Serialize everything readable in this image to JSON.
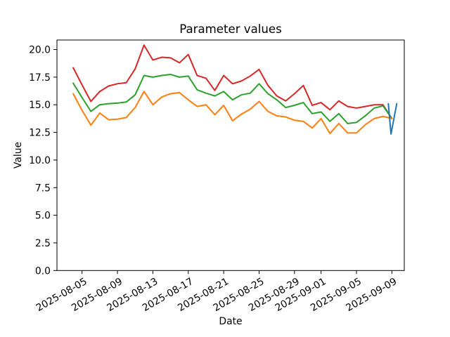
{
  "figure": {
    "background": "#ffffff"
  },
  "chart_data": {
    "type": "line",
    "title": "Parameter values",
    "xlabel": "Date",
    "ylabel": "Value",
    "grid": false,
    "legend": "none",
    "x_start_date": "2025-08-04",
    "x_interval_days": 1,
    "x_end_date": "2025-09-09",
    "ylim": [
      0,
      20.86
    ],
    "y_ticks": {
      "values": [
        0,
        2.5,
        5,
        7.5,
        10,
        12.5,
        15,
        17.5,
        20
      ],
      "labels": [
        "0.0",
        "2.5",
        "5.0",
        "7.5",
        "10.0",
        "12.5",
        "15.0",
        "17.5",
        "20.0"
      ]
    },
    "x_tick_labels": [
      "2025-08-05",
      "2025-08-09",
      "2025-08-13",
      "2025-08-17",
      "2025-08-21",
      "2025-08-25",
      "2025-08-29",
      "2025-09-01",
      "2025-09-05",
      "2025-09-09"
    ],
    "series": [
      {
        "name": "red",
        "color": "#d62728",
        "values": [
          18.35,
          16.8,
          15.3,
          16.2,
          16.7,
          16.9,
          17.0,
          18.25,
          20.4,
          19.05,
          19.3,
          19.25,
          18.8,
          19.55,
          17.65,
          17.4,
          16.3,
          17.65,
          16.9,
          17.15,
          17.6,
          18.2,
          16.75,
          15.8,
          15.35,
          16.0,
          16.75,
          14.95,
          15.2,
          14.55,
          15.35,
          14.85,
          14.7,
          14.85,
          15.0,
          15.0,
          13.75
        ]
      },
      {
        "name": "green",
        "color": "#2ca02c",
        "values": [
          16.95,
          15.65,
          14.4,
          15.0,
          15.1,
          15.15,
          15.25,
          15.9,
          17.65,
          17.5,
          17.65,
          17.75,
          17.5,
          17.6,
          16.35,
          16.05,
          15.8,
          16.2,
          15.45,
          15.9,
          16.05,
          16.9,
          16.0,
          15.45,
          14.75,
          14.95,
          15.2,
          14.2,
          14.35,
          13.5,
          14.2,
          13.3,
          13.4,
          14.0,
          14.7,
          14.9,
          13.75
        ]
      },
      {
        "name": "orange",
        "color": "#ff7f0e",
        "values": [
          16.0,
          14.5,
          13.15,
          14.25,
          13.65,
          13.7,
          13.85,
          14.75,
          16.2,
          15.0,
          15.7,
          16.0,
          16.1,
          15.45,
          14.85,
          15.0,
          14.1,
          14.95,
          13.55,
          14.15,
          14.6,
          15.3,
          14.4,
          14.0,
          13.9,
          13.6,
          13.5,
          12.9,
          13.75,
          12.4,
          13.3,
          12.45,
          12.45,
          13.2,
          13.75,
          13.95,
          13.75
        ]
      },
      {
        "name": "blue-tail",
        "color": "#1f77b4",
        "x_day_offsets": [
          35.6,
          35.9,
          36.55
        ],
        "values": [
          15.1,
          12.35,
          15.1
        ]
      }
    ]
  }
}
